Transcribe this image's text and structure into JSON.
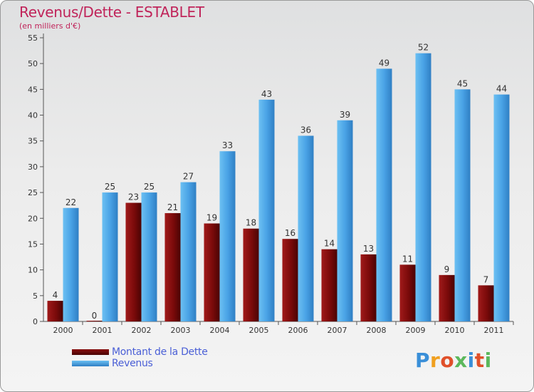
{
  "chart_data": {
    "type": "bar",
    "title": "Revenus/Dette - ESTABLET",
    "subtitle": "(en milliers d'€)",
    "categories": [
      "2000",
      "2001",
      "2002",
      "2003",
      "2004",
      "2005",
      "2006",
      "2007",
      "2008",
      "2009",
      "2010",
      "2011"
    ],
    "series": [
      {
        "name": "Montant de la Dette",
        "color": "#7a0a0a",
        "values": [
          4,
          0,
          23,
          21,
          19,
          18,
          16,
          14,
          13,
          11,
          9,
          7
        ]
      },
      {
        "name": "Revenus",
        "color": "#4aa3e6",
        "values": [
          22,
          25,
          25,
          27,
          33,
          43,
          36,
          39,
          49,
          52,
          45,
          44
        ]
      }
    ],
    "ylim": [
      0,
      55
    ],
    "yticks": [
      0,
      5,
      10,
      15,
      20,
      25,
      30,
      35,
      40,
      45,
      50,
      55
    ],
    "grid": false,
    "legend_position": "bottom-left"
  },
  "brand": {
    "logo_text": "Proxiti"
  }
}
